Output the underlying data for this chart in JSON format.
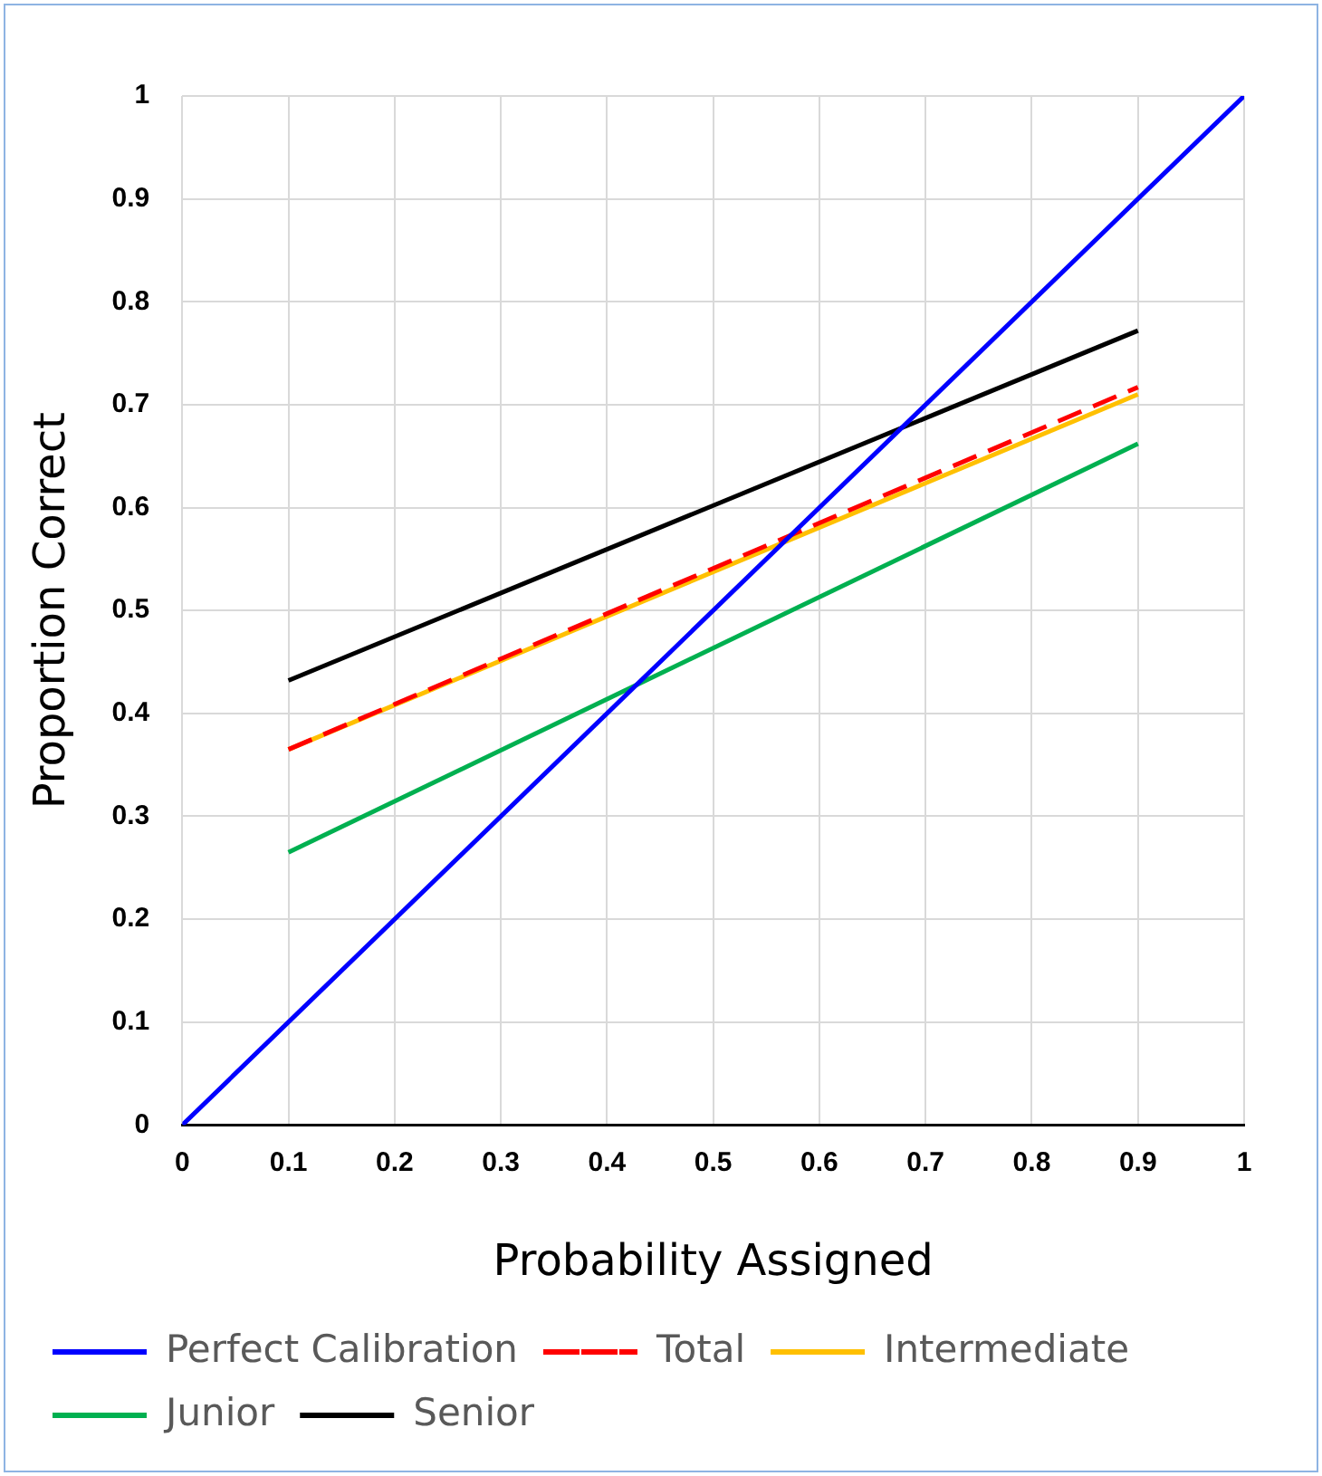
{
  "chart_data": {
    "type": "line",
    "xlabel": "Probability Assigned",
    "ylabel": "Proportion Correct",
    "xlim": [
      0,
      1
    ],
    "ylim": [
      0,
      1
    ],
    "xticks": [
      0,
      0.1,
      0.2,
      0.3,
      0.4,
      0.5,
      0.6,
      0.7,
      0.8,
      0.9,
      1
    ],
    "yticks": [
      0,
      0.1,
      0.2,
      0.3,
      0.4,
      0.5,
      0.6,
      0.7,
      0.8,
      0.9,
      1
    ],
    "grid": true,
    "legend": "bottom",
    "marker": "none",
    "series": [
      {
        "name": "Perfect Calibration",
        "color": "#0000ff",
        "x": [
          0,
          1
        ],
        "values": [
          0,
          1
        ]
      },
      {
        "name": "Total",
        "color": "#ff0000",
        "x": [
          0.1,
          0.9
        ],
        "values": [
          0.365,
          0.717
        ],
        "line_style": "dashed"
      },
      {
        "name": "Intermediate",
        "color": "#ffc000",
        "x": [
          0.1,
          0.9
        ],
        "values": [
          0.365,
          0.71
        ]
      },
      {
        "name": "Junior",
        "color": "#00b050",
        "x": [
          0.1,
          0.9
        ],
        "values": [
          0.265,
          0.662
        ]
      },
      {
        "name": "Senior",
        "color": "#000000",
        "x": [
          0.1,
          0.9
        ],
        "values": [
          0.432,
          0.772
        ]
      }
    ]
  }
}
